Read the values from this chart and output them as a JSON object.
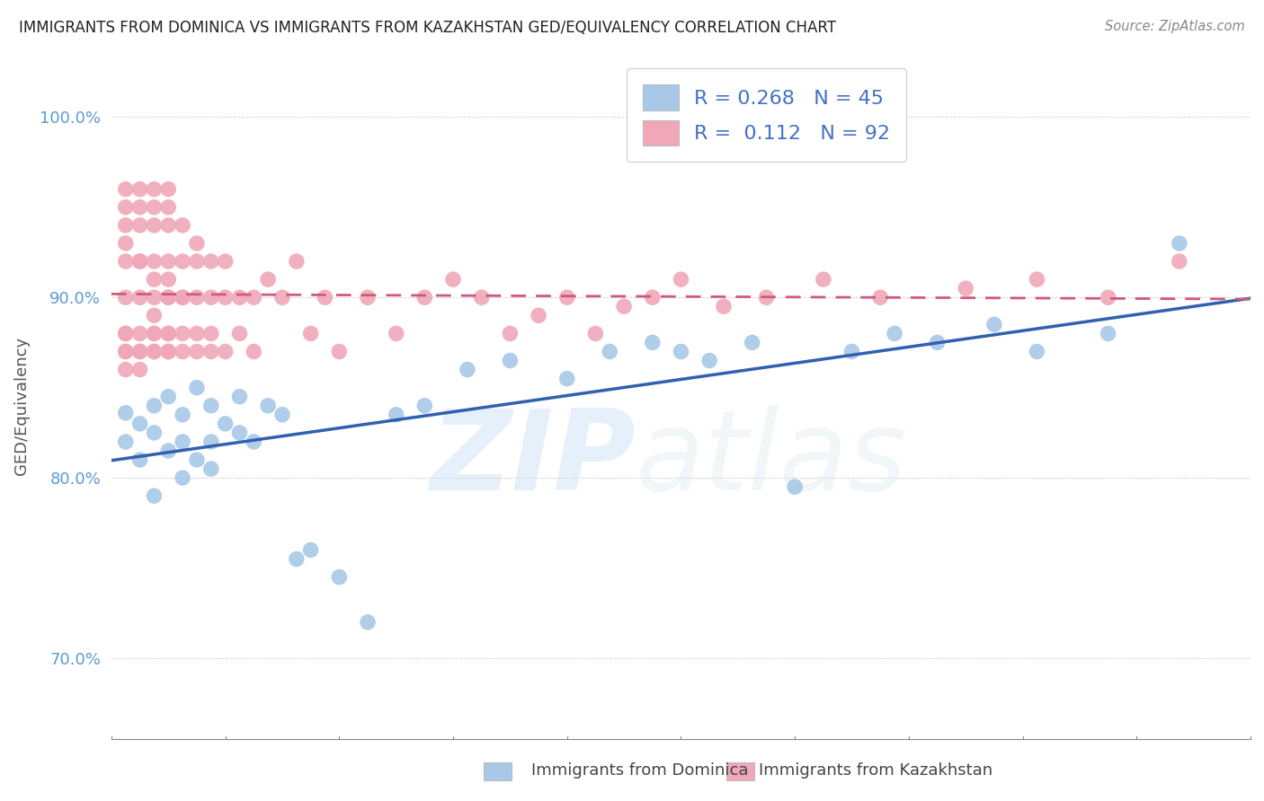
{
  "title": "IMMIGRANTS FROM DOMINICA VS IMMIGRANTS FROM KAZAKHSTAN GED/EQUIVALENCY CORRELATION CHART",
  "source": "Source: ZipAtlas.com",
  "ylabel": "GED/Equivalency",
  "yticks": [
    "70.0%",
    "80.0%",
    "90.0%",
    "100.0%"
  ],
  "ytick_vals": [
    0.7,
    0.8,
    0.9,
    1.0
  ],
  "xlim": [
    0.0,
    0.08
  ],
  "ylim": [
    0.655,
    1.025
  ],
  "legend_blue_R": "0.268",
  "legend_blue_N": "45",
  "legend_pink_R": "0.112",
  "legend_pink_N": "92",
  "blue_color": "#A8C8E8",
  "pink_color": "#F0A8B8",
  "blue_line_color": "#3060B0",
  "pink_line_color": "#D05880",
  "watermark_zip": "ZIP",
  "watermark_atlas": "atlas",
  "blue_scatter_x": [
    0.001,
    0.001,
    0.002,
    0.002,
    0.003,
    0.003,
    0.003,
    0.004,
    0.004,
    0.005,
    0.005,
    0.005,
    0.006,
    0.006,
    0.007,
    0.007,
    0.007,
    0.008,
    0.009,
    0.009,
    0.01,
    0.011,
    0.012,
    0.013,
    0.014,
    0.016,
    0.018,
    0.02,
    0.022,
    0.025,
    0.028,
    0.032,
    0.035,
    0.038,
    0.04,
    0.042,
    0.045,
    0.048,
    0.052,
    0.055,
    0.058,
    0.062,
    0.065,
    0.07,
    0.075
  ],
  "blue_scatter_y": [
    0.836,
    0.82,
    0.83,
    0.81,
    0.825,
    0.79,
    0.84,
    0.815,
    0.845,
    0.8,
    0.82,
    0.835,
    0.81,
    0.85,
    0.82,
    0.84,
    0.805,
    0.83,
    0.825,
    0.845,
    0.82,
    0.84,
    0.835,
    0.755,
    0.76,
    0.745,
    0.72,
    0.835,
    0.84,
    0.86,
    0.865,
    0.855,
    0.87,
    0.875,
    0.87,
    0.865,
    0.875,
    0.795,
    0.87,
    0.88,
    0.875,
    0.885,
    0.87,
    0.88,
    0.93
  ],
  "pink_scatter_x": [
    0.001,
    0.001,
    0.001,
    0.001,
    0.001,
    0.001,
    0.001,
    0.001,
    0.001,
    0.001,
    0.001,
    0.002,
    0.002,
    0.002,
    0.002,
    0.002,
    0.002,
    0.002,
    0.002,
    0.002,
    0.002,
    0.003,
    0.003,
    0.003,
    0.003,
    0.003,
    0.003,
    0.003,
    0.003,
    0.003,
    0.003,
    0.003,
    0.004,
    0.004,
    0.004,
    0.004,
    0.004,
    0.004,
    0.004,
    0.004,
    0.004,
    0.004,
    0.004,
    0.004,
    0.005,
    0.005,
    0.005,
    0.005,
    0.005,
    0.005,
    0.006,
    0.006,
    0.006,
    0.006,
    0.006,
    0.007,
    0.007,
    0.007,
    0.007,
    0.008,
    0.008,
    0.008,
    0.009,
    0.009,
    0.01,
    0.01,
    0.011,
    0.012,
    0.013,
    0.014,
    0.015,
    0.016,
    0.018,
    0.02,
    0.022,
    0.024,
    0.026,
    0.028,
    0.03,
    0.032,
    0.034,
    0.036,
    0.038,
    0.04,
    0.043,
    0.046,
    0.05,
    0.054,
    0.06,
    0.065,
    0.07,
    0.075
  ],
  "pink_scatter_y": [
    0.92,
    0.95,
    0.9,
    0.96,
    0.88,
    0.94,
    0.87,
    0.93,
    0.88,
    0.87,
    0.86,
    0.94,
    0.92,
    0.9,
    0.96,
    0.88,
    0.87,
    0.95,
    0.87,
    0.92,
    0.86,
    0.94,
    0.91,
    0.95,
    0.88,
    0.92,
    0.87,
    0.9,
    0.96,
    0.89,
    0.87,
    0.88,
    0.94,
    0.91,
    0.95,
    0.88,
    0.87,
    0.92,
    0.9,
    0.96,
    0.87,
    0.88,
    0.9,
    0.87,
    0.9,
    0.92,
    0.87,
    0.94,
    0.88,
    0.9,
    0.92,
    0.88,
    0.9,
    0.87,
    0.93,
    0.9,
    0.87,
    0.92,
    0.88,
    0.9,
    0.87,
    0.92,
    0.88,
    0.9,
    0.87,
    0.9,
    0.91,
    0.9,
    0.92,
    0.88,
    0.9,
    0.87,
    0.9,
    0.88,
    0.9,
    0.91,
    0.9,
    0.88,
    0.89,
    0.9,
    0.88,
    0.895,
    0.9,
    0.91,
    0.895,
    0.9,
    0.91,
    0.9,
    0.905,
    0.91,
    0.9,
    0.92
  ]
}
